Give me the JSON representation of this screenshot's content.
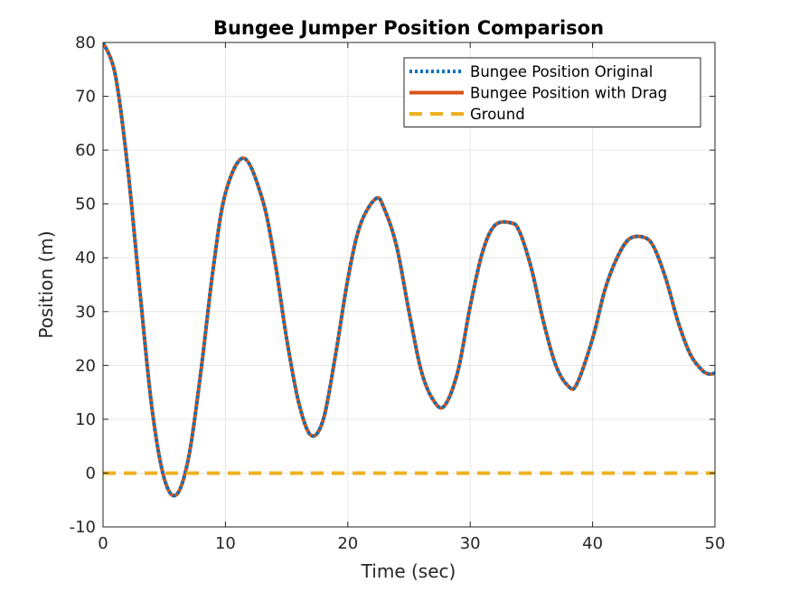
{
  "chart_data": {
    "type": "line",
    "title": "Bungee Jumper Position Comparison",
    "xlabel": "Time (sec)",
    "ylabel": "Position (m)",
    "xlim": [
      0,
      50
    ],
    "ylim": [
      -10,
      80
    ],
    "xticks": [
      0,
      10,
      20,
      30,
      40,
      50
    ],
    "yticks": [
      -10,
      0,
      10,
      20,
      30,
      40,
      50,
      60,
      70,
      80
    ],
    "grid": true,
    "legend_position": "top-right",
    "series": [
      {
        "name": "Bungee Position Original",
        "color": "#0072BD",
        "style": "dotted",
        "x": [
          0,
          1,
          2,
          3,
          4,
          5,
          6,
          7,
          8,
          9,
          10,
          11.5,
          13,
          14,
          15,
          16,
          17,
          18,
          19,
          20,
          21,
          22.3,
          23,
          24,
          25,
          26,
          27,
          27.9,
          29,
          30,
          31,
          32,
          33.3,
          34,
          35,
          36,
          37,
          38,
          38.7,
          40,
          41,
          42,
          43,
          44.2,
          45,
          46,
          47,
          48,
          49,
          49.6,
          50
        ],
        "y": [
          80,
          74,
          57,
          34,
          12,
          -1,
          -4,
          3,
          19,
          38,
          52,
          58.5,
          51,
          40,
          25,
          13,
          7,
          10,
          22,
          36,
          46,
          51,
          49,
          42,
          30,
          19,
          13.5,
          12.5,
          19,
          31,
          41,
          46,
          46.5,
          45,
          38,
          28,
          20,
          16.2,
          16.5,
          25,
          34,
          40,
          43.5,
          43.8,
          42,
          36,
          28,
          22,
          19,
          18.4,
          18.6
        ]
      },
      {
        "name": "Bungee Position with Drag",
        "color": "#D95319",
        "style": "solid",
        "x": [
          0,
          1,
          2,
          3,
          4,
          5,
          6,
          7,
          8,
          9,
          10,
          11.5,
          13,
          14,
          15,
          16,
          17,
          18,
          19,
          20,
          21,
          22.3,
          23,
          24,
          25,
          26,
          27,
          27.9,
          29,
          30,
          31,
          32,
          33.3,
          34,
          35,
          36,
          37,
          38,
          38.7,
          40,
          41,
          42,
          43,
          44.2,
          45,
          46,
          47,
          48,
          49,
          49.6,
          50
        ],
        "y": [
          80,
          74,
          57,
          34,
          12,
          -1,
          -4,
          3,
          19,
          38,
          52,
          58.5,
          51,
          40,
          25,
          13,
          7,
          10,
          22,
          36,
          46,
          51,
          49,
          42,
          30,
          19,
          13.5,
          12.5,
          19,
          31,
          41,
          46,
          46.5,
          45,
          38,
          28,
          20,
          16.2,
          16.5,
          25,
          34,
          40,
          43.5,
          43.8,
          42,
          36,
          28,
          22,
          19,
          18.4,
          18.6
        ]
      },
      {
        "name": "Ground",
        "color": "#EDB120",
        "style": "dashed",
        "x": [
          0,
          50
        ],
        "y": [
          0,
          0
        ]
      }
    ]
  }
}
